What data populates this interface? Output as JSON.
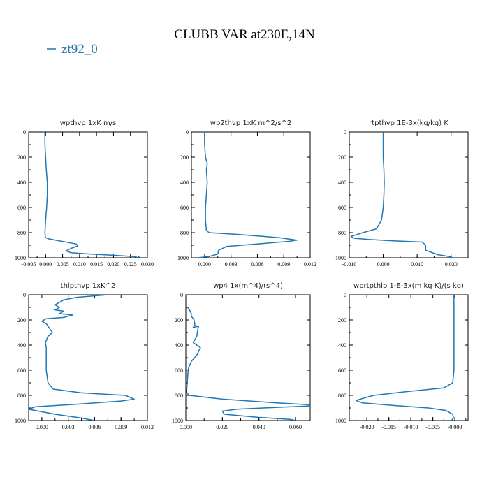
{
  "figure": {
    "title": "CLUBB VAR at230E,14N",
    "legend": {
      "label": "zt92_0",
      "color": "#1f77b4",
      "placement": "top-left"
    }
  },
  "chart_data": [
    {
      "type": "line",
      "title": "wpthvp  1xK m/s",
      "xlim": [
        -0.005,
        0.03
      ],
      "xticks": [
        -0.005,
        0.0,
        0.005,
        0.01,
        0.015,
        0.02,
        0.025,
        0.03
      ],
      "xtick_labels": [
        "-0.005",
        "0.000",
        "0.005",
        "0.010",
        "0.015",
        "0.020",
        "0.025",
        "0.030"
      ],
      "ylim": [
        1000,
        0
      ],
      "yticks": [
        0,
        200,
        400,
        600,
        800,
        1000
      ],
      "series": [
        {
          "x": [
            -0.0002,
            -0.0002,
            0.0,
            0.0002,
            0.0005,
            0.0005,
            0.0003,
            0.0,
            -0.0002,
            -0.0001,
            0.0,
            0.001,
            0.005,
            0.009,
            0.0095,
            0.0075,
            0.006,
            0.0075,
            0.013,
            0.02,
            0.026,
            0.0275
          ],
          "y": [
            0,
            100,
            200,
            300,
            400,
            500,
            600,
            700,
            800,
            830,
            840,
            850,
            870,
            890,
            905,
            925,
            945,
            960,
            970,
            980,
            990,
            1000
          ]
        }
      ]
    },
    {
      "type": "line",
      "title": "wp2thvp  1xK m^2/s^2",
      "xlim": [
        -0.0015,
        0.012
      ],
      "xticks": [
        0.0,
        0.003,
        0.006,
        0.009,
        0.012
      ],
      "xtick_labels": [
        "0.000",
        "0.003",
        "0.006",
        "0.009",
        "0.012"
      ],
      "ylim": [
        1000,
        0
      ],
      "yticks": [
        0,
        200,
        400,
        600,
        800,
        1000
      ],
      "series": [
        {
          "x": [
            0.0,
            0.0,
            0.0001,
            0.0003,
            0.0002,
            0.0003,
            0.0002,
            0.0001,
            0.0001,
            0.0002,
            0.0005,
            0.004,
            0.0085,
            0.0105,
            0.0095,
            0.006,
            0.0025,
            0.0016,
            0.0015,
            0.0005,
            -0.0008
          ],
          "y": [
            0,
            100,
            200,
            250,
            300,
            400,
            500,
            600,
            700,
            780,
            800,
            815,
            840,
            860,
            870,
            890,
            910,
            940,
            970,
            990,
            1000
          ]
        }
      ]
    },
    {
      "type": "line",
      "title": "rtpthvp  1E-3x(kg/kg) K",
      "xlim": [
        -0.01,
        0.025
      ],
      "xticks": [
        -0.01,
        0.0,
        0.01,
        0.02
      ],
      "xtick_labels": [
        "-0.010",
        "0.000",
        "0.010",
        "0.020"
      ],
      "ylim": [
        1000,
        0
      ],
      "yticks": [
        0,
        200,
        400,
        600,
        800,
        1000
      ],
      "series": [
        {
          "x": [
            0.0,
            0.0,
            0.0,
            0.0002,
            0.0003,
            0.0002,
            0.0,
            -0.0005,
            -0.002,
            -0.006,
            -0.0095,
            -0.0085,
            -0.004,
            0.003,
            0.0115,
            0.0125,
            0.0125,
            0.016,
            0.0195,
            0.0205
          ],
          "y": [
            0,
            100,
            200,
            300,
            400,
            500,
            600,
            700,
            770,
            800,
            830,
            845,
            855,
            865,
            875,
            900,
            940,
            975,
            990,
            1000
          ]
        }
      ]
    },
    {
      "type": "line",
      "title": "thlpthvp  1xK^2",
      "xlim": [
        -0.0015,
        0.012
      ],
      "xticks": [
        0.0,
        0.003,
        0.006,
        0.009,
        0.012
      ],
      "xtick_labels": [
        "0.000",
        "0.003",
        "0.006",
        "0.009",
        "0.012"
      ],
      "ylim": [
        1000,
        0
      ],
      "yticks": [
        0,
        200,
        400,
        600,
        800,
        1000
      ],
      "series": [
        {
          "x": [
            0.0075,
            0.004,
            0.0025,
            0.002,
            0.0015,
            0.002,
            0.0015,
            0.0025,
            0.002,
            0.0035,
            0.0025,
            0.0005,
            0.0,
            0.0005,
            0.0012,
            0.0007,
            0.0004,
            0.0005,
            0.0005,
            0.0005,
            0.0007,
            0.0013,
            0.0045,
            0.0095,
            0.0105,
            0.009,
            0.004,
            -0.0007,
            -0.0015,
            0.0015,
            0.0045,
            0.006
          ],
          "y": [
            0,
            20,
            40,
            60,
            80,
            100,
            120,
            130,
            150,
            160,
            180,
            190,
            210,
            230,
            300,
            330,
            380,
            420,
            500,
            600,
            700,
            750,
            780,
            800,
            830,
            845,
            870,
            890,
            910,
            950,
            980,
            1000
          ]
        }
      ]
    },
    {
      "type": "line",
      "title": "wp4  1x(m^4)/(s^4)",
      "xlim": [
        0.0,
        0.068
      ],
      "xticks": [
        0.0,
        0.02,
        0.04,
        0.06
      ],
      "xtick_labels": [
        "0.000",
        "0.020",
        "0.040",
        "0.060"
      ],
      "ylim": [
        1000,
        0
      ],
      "yticks": [
        0,
        200,
        400,
        600,
        800,
        1000
      ],
      "series": [
        {
          "x": [
            0.001,
            0.002,
            0.003,
            0.003,
            0.0045,
            0.005,
            0.004,
            0.007,
            0.0065,
            0.006,
            0.004,
            0.008,
            0.006,
            0.003,
            0.0015,
            0.001,
            0.0008,
            0.0005,
            0.0005,
            0.002,
            0.02,
            0.05,
            0.068,
            0.067,
            0.05,
            0.028,
            0.02,
            0.021,
            0.04,
            0.057,
            0.06
          ],
          "y": [
            100,
            120,
            150,
            170,
            200,
            240,
            260,
            250,
            280,
            330,
            380,
            420,
            480,
            530,
            580,
            650,
            700,
            750,
            780,
            800,
            830,
            860,
            875,
            885,
            895,
            910,
            925,
            950,
            975,
            990,
            1000
          ]
        }
      ]
    },
    {
      "type": "line",
      "title": "wprtpthlp  1-E-3x(m kg K)/(s kg)",
      "xlim": [
        -0.024,
        0.003
      ],
      "xticks": [
        -0.02,
        -0.015,
        -0.01,
        -0.005,
        0.0
      ],
      "xtick_labels": [
        "-0.020",
        "-0.015",
        "-0.010",
        "-0.005",
        "-0.000"
      ],
      "ylim": [
        1000,
        0
      ],
      "yticks": [
        0,
        200,
        400,
        600,
        800,
        1000
      ],
      "series": [
        {
          "x": [
            -0.0002,
            -0.0002,
            -0.0002,
            -0.0002,
            -0.0002,
            -0.0002,
            -0.0002,
            -0.0005,
            -0.0025,
            -0.011,
            -0.0185,
            -0.0225,
            -0.021,
            -0.014,
            -0.006,
            -0.002,
            -0.0005,
            -0.0003,
            -0.0008
          ],
          "y": [
            0,
            100,
            200,
            300,
            400,
            500,
            600,
            700,
            740,
            770,
            800,
            840,
            860,
            880,
            900,
            920,
            950,
            980,
            1000
          ]
        }
      ]
    }
  ]
}
